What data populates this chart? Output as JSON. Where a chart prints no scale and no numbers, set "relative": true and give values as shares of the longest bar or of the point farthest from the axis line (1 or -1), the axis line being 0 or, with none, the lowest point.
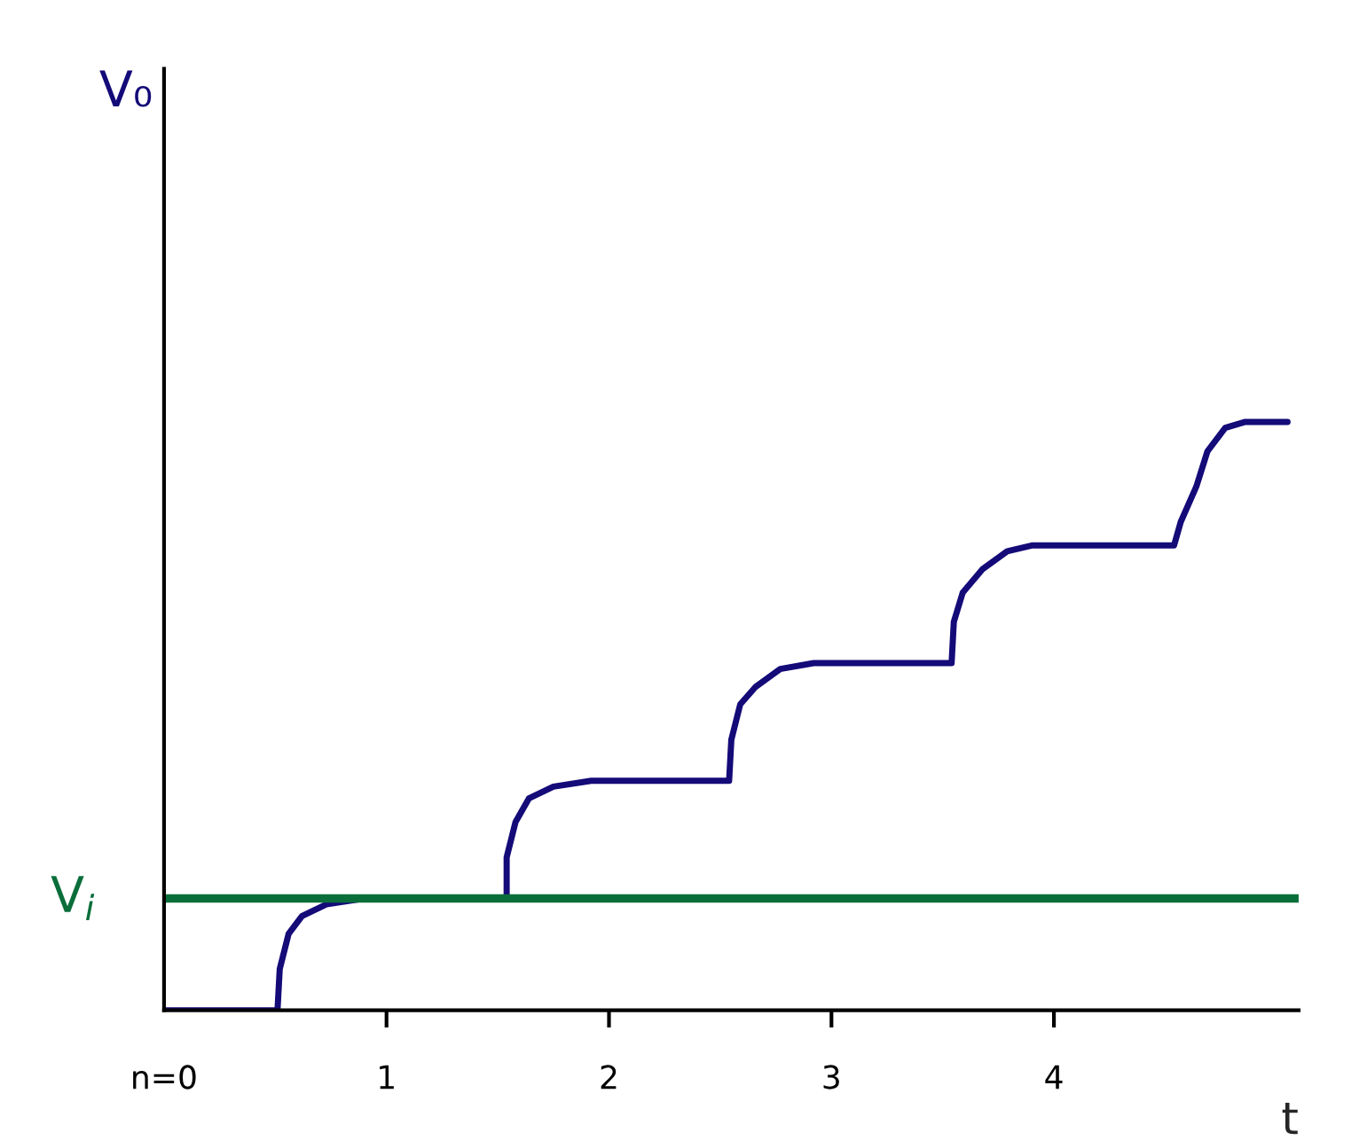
{
  "chart_data": {
    "type": "line",
    "relative": true,
    "xlabel": "t",
    "annotations": [
      "V₀"
    ],
    "x": [
      0,
      0.51,
      0.52,
      0.56,
      0.62,
      0.73,
      0.9,
      1.54,
      1.54,
      1.58,
      1.64,
      1.75,
      1.92,
      2.54,
      2.55,
      2.59,
      2.66,
      2.77,
      2.92,
      3.54,
      3.55,
      3.59,
      3.68,
      3.79,
      3.9,
      4.54,
      4.57,
      4.64,
      4.69,
      4.77,
      4.86,
      5.05
    ],
    "series": [
      {
        "color": "#140a78",
        "values": [
          0,
          0,
          0.07,
          0.13,
          0.16,
          0.18,
          0.19,
          0.19,
          0.26,
          0.32,
          0.36,
          0.38,
          0.39,
          0.39,
          0.46,
          0.52,
          0.55,
          0.58,
          0.59,
          0.59,
          0.66,
          0.71,
          0.75,
          0.78,
          0.79,
          0.79,
          0.83,
          0.89,
          0.95,
          0.99,
          1.0,
          1.0
        ]
      }
    ],
    "xlim": [
      0,
      5.1
    ],
    "xticks": [
      {
        "value": 0,
        "label": "n=0"
      },
      1,
      2,
      3,
      4
    ],
    "ref_lines": [
      {
        "axis": "y",
        "value": 0.19,
        "label": "V$_{i}$",
        "color": "#0a6e3a"
      }
    ],
    "grid": false,
    "legend": false,
    "marker": "none",
    "line_style": "solid"
  }
}
